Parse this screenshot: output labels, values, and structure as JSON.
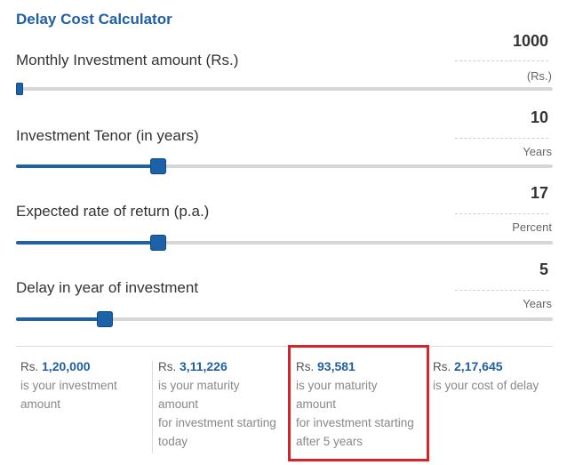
{
  "title": "Delay Cost Calculator",
  "sliders": [
    {
      "label": "Monthly Investment amount (Rs.)",
      "value": "1000",
      "unit": "(Rs.)",
      "fraction": 0.004
    },
    {
      "label": "Investment Tenor (in years)",
      "value": "10",
      "unit": "Years",
      "fraction": 0.265
    },
    {
      "label": "Expected rate of return (p.a.)",
      "value": "17",
      "unit": "Percent",
      "fraction": 0.265
    },
    {
      "label": "Delay in year of investment",
      "value": "5",
      "unit": "Years",
      "fraction": 0.165
    }
  ],
  "results": [
    {
      "currency": "Rs.",
      "amount": "1,20,000",
      "lines": [
        "is your investment",
        "amount"
      ]
    },
    {
      "currency": "Rs.",
      "amount": "3,11,226",
      "lines": [
        "is your maturity",
        "amount",
        "for investment starting",
        "today"
      ]
    },
    {
      "currency": "Rs.",
      "amount": "93,581",
      "lines": [
        "is your maturity",
        "amount",
        "for investment starting",
        "after 5 years"
      ]
    },
    {
      "currency": "Rs.",
      "amount": "2,17,645",
      "lines": [
        "is your cost of delay"
      ]
    }
  ],
  "colors": {
    "accent": "#1d62a8",
    "highlight": "#d8232a"
  }
}
